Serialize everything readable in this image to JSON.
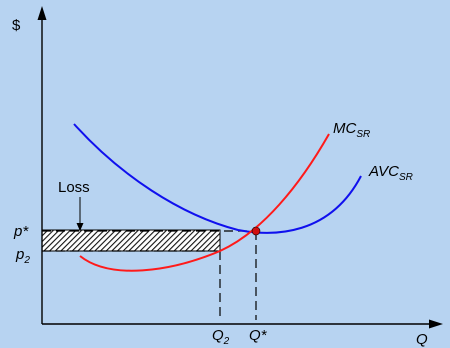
{
  "axes": {
    "y_label": "$",
    "x_label": "Q"
  },
  "curves": {
    "mc": {
      "label": "MC",
      "subscript": "SR",
      "color": "#ff1a1a"
    },
    "avc": {
      "label": "AVC",
      "subscript": "SR",
      "color": "#1010ee"
    }
  },
  "prices": {
    "p_star": {
      "label": "p*"
    },
    "p2": {
      "label": "p",
      "subscript": "2"
    }
  },
  "quantities": {
    "q2": {
      "label": "Q",
      "subscript": "2"
    },
    "q_star": {
      "label": "Q*"
    }
  },
  "loss": {
    "label": "Loss"
  },
  "equilibrium_point_color": "#d01010"
}
